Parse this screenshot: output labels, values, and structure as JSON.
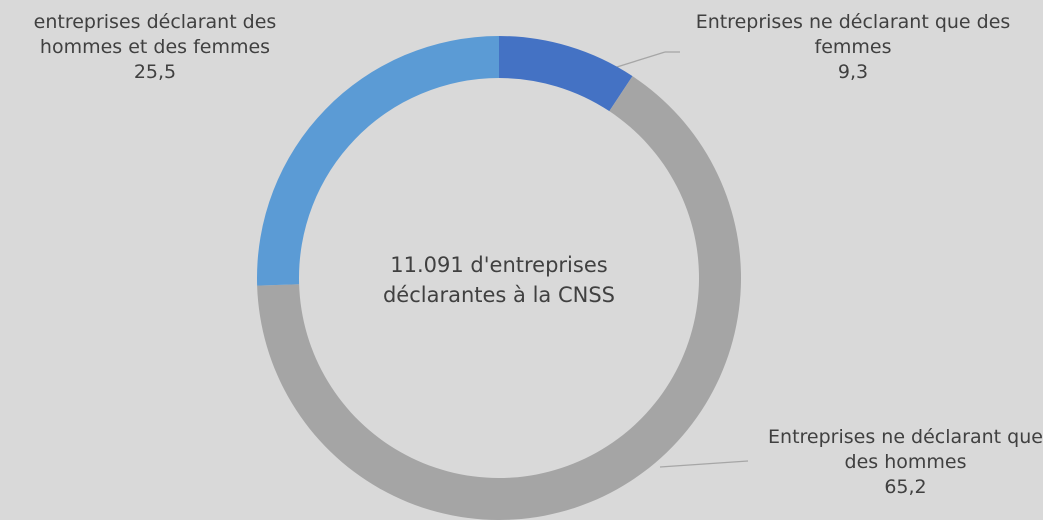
{
  "chart_data": {
    "type": "donut",
    "categories": [
      "Entreprises ne déclarant que des femmes",
      "Entreprises ne déclarant que des hommes",
      "entreprises déclarant des hommes et des femmes"
    ],
    "values": [
      9.3,
      65.2,
      25.5
    ],
    "value_labels": [
      "9,3",
      "65,2",
      "25,5"
    ],
    "colors": [
      "#4472c4",
      "#a5a5a5",
      "#5b9bd5"
    ],
    "center_label": "11.091  d'entreprises déclarantes à la CNSS"
  }
}
